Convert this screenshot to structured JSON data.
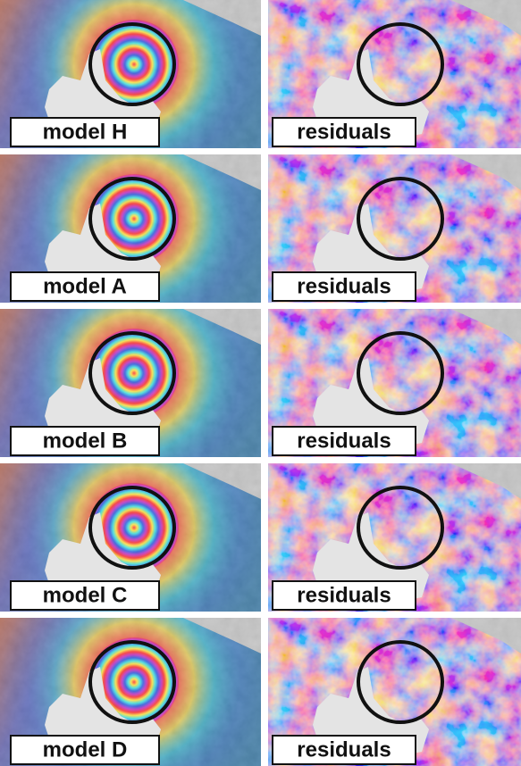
{
  "rows": [
    {
      "left": "model H",
      "right": "residuals"
    },
    {
      "left": "model A",
      "right": "residuals"
    },
    {
      "left": "model B",
      "right": "residuals"
    },
    {
      "left": "model C",
      "right": "residuals"
    },
    {
      "left": "model D",
      "right": "residuals"
    }
  ]
}
